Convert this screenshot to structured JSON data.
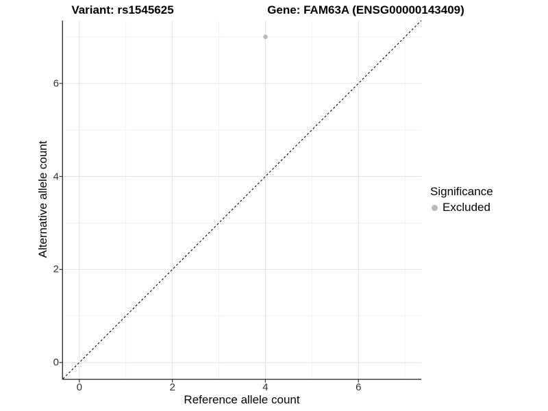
{
  "titles": {
    "variant": "Variant: rs1545625",
    "gene": "Gene: FAM63A (ENSG00000143409)"
  },
  "axes": {
    "x": {
      "label": "Reference allele count",
      "tick_labels": [
        "0",
        "2",
        "4",
        "6"
      ]
    },
    "y": {
      "label": "Alternative allele count",
      "tick_labels": [
        "0",
        "2",
        "4",
        "6"
      ]
    }
  },
  "legend": {
    "title": "Significance",
    "items": [
      {
        "label": "Excluded",
        "color": "#b8b8b8"
      }
    ]
  },
  "colors": {
    "grid_major": "#e4e4e4",
    "grid_minor": "#f2f2f2",
    "axis_line": "#333333",
    "reference_line": "#000000",
    "point": "#b8b8b8",
    "background": "#ffffff"
  },
  "chart_data": {
    "type": "scatter",
    "title_left": "Variant: rs1545625",
    "title_right": "Gene: FAM63A (ENSG00000143409)",
    "xlabel": "Reference allele count",
    "ylabel": "Alternative allele count",
    "xlim": [
      -0.35,
      7.35
    ],
    "ylim": [
      -0.35,
      7.35
    ],
    "x_major_ticks": [
      0,
      2,
      4,
      6
    ],
    "y_major_ticks": [
      0,
      2,
      4,
      6
    ],
    "x_minor_ticks": [
      1,
      3,
      5,
      7
    ],
    "y_minor_ticks": [
      1,
      3,
      5,
      7
    ],
    "grid": true,
    "legend_position": "right",
    "series": [
      {
        "name": "Excluded",
        "color": "#b8b8b8",
        "points": [
          [
            4,
            7
          ]
        ]
      }
    ],
    "reference_line": {
      "type": "identity",
      "slope": 1,
      "intercept": 0,
      "style": "dashed"
    }
  }
}
